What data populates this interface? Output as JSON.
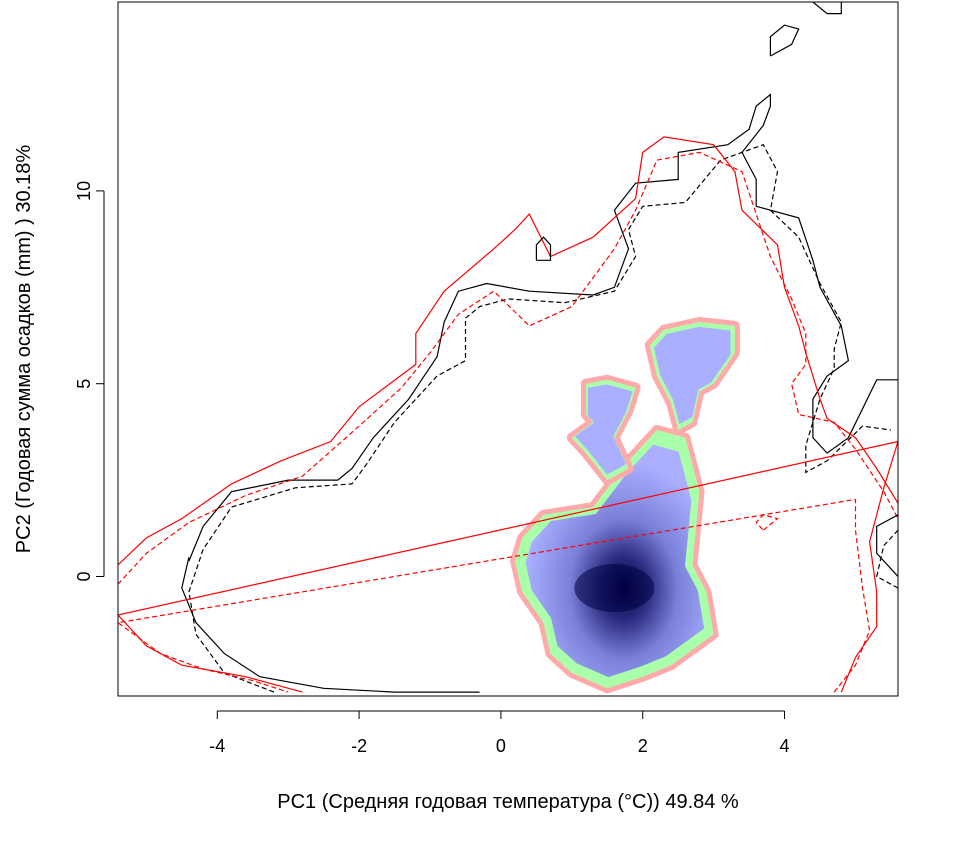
{
  "chart_data": {
    "type": "contour",
    "xlabel": "PC1 (Средняя годовая температура (°C)) 49.84 %",
    "ylabel": "PC2 (Годовая сумма осадков  (mm) ) 30.18%",
    "xlim": [
      -5.4,
      5.6
    ],
    "ylim": [
      -3.1,
      14.9
    ],
    "x_ticks": [
      -4,
      -2,
      0,
      2,
      4
    ],
    "x_tick_labels": [
      "-4",
      "-2",
      "0",
      "2",
      "4"
    ],
    "y_ticks": [
      0,
      5,
      10
    ],
    "y_tick_labels": [
      "0",
      "5",
      "10"
    ],
    "grid": false,
    "legend": "none",
    "colors": {
      "contour_black": "#000000",
      "contour_red": "#ff0000",
      "niche_expansion": "#ffaaaa",
      "niche_unfilling": "#aaffaa",
      "density_low": "#aab0ff",
      "density_high": "#000044"
    },
    "contours": [
      {
        "color": "#000000",
        "dash": "solid",
        "points": [
          [
            -3.4,
            -2.6
          ],
          [
            -2.5,
            -2.9
          ],
          [
            -1.5,
            -3.0
          ],
          [
            -0.5,
            -3.0
          ],
          [
            -0.3,
            -3.0
          ]
        ],
        "pre": [
          [
            -4.4,
            0.5
          ],
          [
            -4.5,
            -0.3
          ],
          [
            -4.3,
            -1.2
          ],
          [
            -3.9,
            -2.0
          ]
        ]
      },
      {
        "color": "#000000",
        "dash": "solid",
        "points": [
          [
            -4.4,
            0.4
          ],
          [
            -4.2,
            1.3
          ],
          [
            -3.8,
            2.2
          ],
          [
            -3.0,
            2.5
          ],
          [
            -2.3,
            2.5
          ],
          [
            -2.1,
            2.8
          ],
          [
            -1.8,
            3.6
          ],
          [
            -1.3,
            4.6
          ],
          [
            -0.9,
            5.7
          ],
          [
            -0.8,
            6.6
          ],
          [
            -0.6,
            7.4
          ],
          [
            -0.2,
            7.6
          ],
          [
            0.4,
            7.4
          ],
          [
            1.3,
            7.3
          ],
          [
            1.6,
            7.5
          ],
          [
            1.8,
            8.5
          ],
          [
            1.6,
            9.5
          ],
          [
            1.9,
            10.2
          ],
          [
            2.5,
            10.3
          ],
          [
            2.5,
            11.0
          ],
          [
            3.2,
            11.2
          ],
          [
            3.5,
            11.6
          ],
          [
            3.6,
            12.2
          ],
          [
            3.8,
            12.5
          ],
          [
            3.8,
            12.2
          ],
          [
            3.7,
            11.7
          ],
          [
            3.4,
            11.0
          ],
          [
            3.6,
            10.3
          ],
          [
            3.6,
            9.6
          ],
          [
            4.2,
            9.3
          ],
          [
            4.4,
            8.2
          ],
          [
            4.5,
            7.5
          ],
          [
            4.8,
            6.5
          ],
          [
            4.9,
            5.6
          ],
          [
            4.6,
            5.2
          ],
          [
            4.4,
            4.6
          ],
          [
            4.4,
            3.6
          ],
          [
            4.6,
            3.2
          ],
          [
            4.9,
            3.6
          ],
          [
            5.3,
            5.1
          ],
          [
            5.6,
            5.1
          ]
        ]
      },
      {
        "color": "#000000",
        "dash": "dashed",
        "points": [
          [
            -3.2,
            -3.0
          ],
          [
            -3.9,
            -2.5
          ],
          [
            -4.3,
            -1.5
          ],
          [
            -4.4,
            -0.4
          ],
          [
            -4.2,
            0.7
          ],
          [
            -3.8,
            1.8
          ],
          [
            -2.9,
            2.3
          ],
          [
            -2.1,
            2.4
          ],
          [
            -1.9,
            2.9
          ],
          [
            -1.5,
            4.0
          ],
          [
            -0.9,
            5.2
          ],
          [
            -0.5,
            5.6
          ],
          [
            -0.5,
            6.7
          ],
          [
            -0.3,
            7.0
          ],
          [
            0.1,
            7.2
          ],
          [
            0.9,
            7.1
          ],
          [
            1.6,
            7.4
          ],
          [
            1.9,
            8.3
          ],
          [
            1.8,
            9.0
          ],
          [
            2.0,
            9.6
          ],
          [
            2.6,
            9.7
          ],
          [
            3.1,
            10.8
          ],
          [
            3.7,
            11.2
          ],
          [
            3.9,
            10.5
          ],
          [
            3.8,
            9.5
          ],
          [
            4.2,
            8.8
          ],
          [
            4.5,
            7.6
          ],
          [
            4.8,
            6.6
          ],
          [
            4.7,
            5.9
          ],
          [
            4.7,
            5.4
          ],
          [
            4.5,
            4.6
          ],
          [
            4.3,
            3.4
          ],
          [
            4.3,
            2.7
          ],
          [
            4.6,
            3.0
          ],
          [
            5.1,
            3.9
          ],
          [
            5.5,
            3.8
          ]
        ]
      },
      {
        "color": "#ff0000",
        "dash": "solid",
        "points": [
          [
            -5.4,
            0.3
          ],
          [
            -5.0,
            1.0
          ],
          [
            -4.5,
            1.5
          ],
          [
            -3.8,
            2.4
          ],
          [
            -3.1,
            3.0
          ],
          [
            -2.4,
            3.5
          ],
          [
            -2.0,
            4.4
          ],
          [
            -1.2,
            5.5
          ],
          [
            -1.2,
            6.3
          ],
          [
            -0.8,
            7.4
          ],
          [
            -0.1,
            8.5
          ],
          [
            0.2,
            9.0
          ],
          [
            0.4,
            9.4
          ],
          [
            0.7,
            8.3
          ],
          [
            1.3,
            8.8
          ],
          [
            1.9,
            9.8
          ],
          [
            2.0,
            11.0
          ],
          [
            2.3,
            11.4
          ],
          [
            3.0,
            11.2
          ],
          [
            3.3,
            10.5
          ],
          [
            3.4,
            9.5
          ],
          [
            3.9,
            8.6
          ],
          [
            4.0,
            7.5
          ],
          [
            4.2,
            6.5
          ],
          [
            4.3,
            5.8
          ],
          [
            4.5,
            4.6
          ],
          [
            4.6,
            4.1
          ],
          [
            5.0,
            3.6
          ],
          [
            5.3,
            2.8
          ],
          [
            5.6,
            1.9
          ]
        ]
      },
      {
        "color": "#ff0000",
        "dash": "solid",
        "points": [
          [
            -5.4,
            -1.0
          ],
          [
            -5.0,
            -1.8
          ],
          [
            -4.5,
            -2.3
          ],
          [
            -3.6,
            -2.6
          ],
          [
            -2.8,
            -3.0
          ]
        ],
        "pre": [
          [
            4.8,
            -3.0
          ],
          [
            5.0,
            -2.1
          ],
          [
            5.3,
            -1.3
          ],
          [
            5.3,
            -0.4
          ],
          [
            5.2,
            0.9
          ],
          [
            5.4,
            2.3
          ],
          [
            5.6,
            3.5
          ]
        ]
      },
      {
        "color": "#ff0000",
        "dash": "dashed",
        "points": [
          [
            -5.4,
            -0.2
          ],
          [
            -5.0,
            0.6
          ],
          [
            -4.4,
            1.4
          ],
          [
            -3.6,
            2.1
          ],
          [
            -2.8,
            2.6
          ],
          [
            -2.0,
            3.9
          ],
          [
            -1.4,
            4.9
          ],
          [
            -1.0,
            5.8
          ],
          [
            -0.6,
            6.8
          ],
          [
            -0.1,
            7.4
          ],
          [
            0.4,
            6.5
          ],
          [
            1.0,
            7.0
          ],
          [
            1.6,
            8.5
          ],
          [
            1.9,
            9.5
          ],
          [
            2.2,
            10.8
          ],
          [
            2.8,
            11.0
          ],
          [
            3.4,
            10.5
          ],
          [
            3.6,
            9.4
          ],
          [
            3.8,
            8.3
          ],
          [
            4.1,
            7.2
          ],
          [
            4.3,
            6.3
          ],
          [
            4.3,
            5.5
          ],
          [
            4.1,
            5.0
          ],
          [
            4.2,
            4.2
          ],
          [
            4.7,
            4.0
          ],
          [
            5.0,
            3.3
          ],
          [
            5.4,
            2.2
          ],
          [
            5.6,
            1.5
          ]
        ]
      },
      {
        "color": "#ff0000",
        "dash": "dashed",
        "points": [
          [
            -5.4,
            -1.2
          ],
          [
            -4.8,
            -2.0
          ],
          [
            -4.2,
            -2.4
          ],
          [
            -3.5,
            -2.7
          ],
          [
            -3.0,
            -3.0
          ]
        ],
        "pre": [
          [
            4.7,
            -3.0
          ],
          [
            5.0,
            -2.3
          ],
          [
            5.2,
            -1.4
          ],
          [
            5.1,
            -0.3
          ],
          [
            5.0,
            1.2
          ],
          [
            5.0,
            2.0
          ]
        ]
      },
      {
        "color": "#000000",
        "dash": "solid",
        "points": [
          [
            0.5,
            8.2
          ],
          [
            0.7,
            8.2
          ],
          [
            0.7,
            8.6
          ],
          [
            0.6,
            8.8
          ],
          [
            0.5,
            8.6
          ],
          [
            0.5,
            8.2
          ]
        ]
      },
      {
        "color": "#000000",
        "dash": "solid",
        "points": [
          [
            3.8,
            13.5
          ],
          [
            4.1,
            13.8
          ],
          [
            4.2,
            14.2
          ],
          [
            4.0,
            14.3
          ],
          [
            3.8,
            14.0
          ],
          [
            3.8,
            13.5
          ]
        ]
      },
      {
        "color": "#000000",
        "dash": "solid",
        "points": [
          [
            4.4,
            14.9
          ],
          [
            4.6,
            14.6
          ],
          [
            4.8,
            14.6
          ],
          [
            4.8,
            14.9
          ]
        ]
      },
      {
        "color": "#000000",
        "dash": "solid",
        "points": [
          [
            5.6,
            0.0
          ],
          [
            5.3,
            0.6
          ],
          [
            5.3,
            1.3
          ],
          [
            5.6,
            1.6
          ]
        ]
      },
      {
        "color": "#000000",
        "dash": "dashed",
        "points": [
          [
            5.6,
            -0.3
          ],
          [
            5.3,
            0.0
          ],
          [
            5.4,
            0.8
          ],
          [
            5.6,
            1.2
          ]
        ]
      },
      {
        "color": "#ff0000",
        "dash": "dashed",
        "points": [
          [
            3.7,
            1.2
          ],
          [
            3.9,
            1.5
          ],
          [
            3.7,
            1.6
          ],
          [
            3.6,
            1.4
          ],
          [
            3.7,
            1.2
          ]
        ]
      }
    ],
    "niche_regions": [
      {
        "name": "main",
        "points": [
          [
            0.3,
            1.0
          ],
          [
            0.6,
            1.6
          ],
          [
            1.3,
            1.8
          ],
          [
            1.8,
            3.0
          ],
          [
            2.2,
            3.8
          ],
          [
            2.6,
            3.6
          ],
          [
            2.8,
            2.2
          ],
          [
            2.7,
            0.3
          ],
          [
            2.9,
            -0.4
          ],
          [
            3.0,
            -1.5
          ],
          [
            2.7,
            -1.9
          ],
          [
            2.4,
            -2.3
          ],
          [
            2.0,
            -2.6
          ],
          [
            1.5,
            -2.9
          ],
          [
            1.0,
            -2.5
          ],
          [
            0.7,
            -2.0
          ],
          [
            0.6,
            -1.2
          ],
          [
            0.3,
            -0.4
          ],
          [
            0.2,
            0.4
          ]
        ]
      },
      {
        "name": "middle",
        "points": [
          [
            1.2,
            4.2
          ],
          [
            1.2,
            5.0
          ],
          [
            1.5,
            5.1
          ],
          [
            1.9,
            4.9
          ],
          [
            1.8,
            4.3
          ],
          [
            1.6,
            3.6
          ],
          [
            1.8,
            2.8
          ],
          [
            1.5,
            2.5
          ],
          [
            1.2,
            3.2
          ],
          [
            1.0,
            3.6
          ],
          [
            1.3,
            4.0
          ]
        ]
      },
      {
        "name": "top-right",
        "points": [
          [
            2.1,
            6.0
          ],
          [
            2.3,
            6.4
          ],
          [
            2.8,
            6.6
          ],
          [
            3.3,
            6.5
          ],
          [
            3.3,
            5.8
          ],
          [
            3.0,
            5.0
          ],
          [
            2.8,
            4.8
          ],
          [
            2.7,
            4.0
          ],
          [
            2.5,
            3.8
          ],
          [
            2.4,
            4.5
          ],
          [
            2.2,
            5.2
          ]
        ]
      }
    ],
    "density_peak": [
      1.6,
      -0.3
    ]
  }
}
